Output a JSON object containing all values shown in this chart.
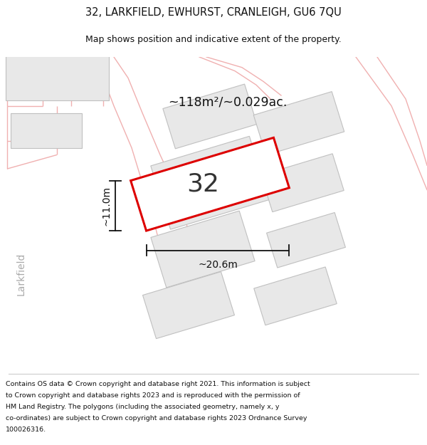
{
  "title_line1": "32, LARKFIELD, EWHURST, CRANLEIGH, GU6 7QU",
  "title_line2": "Map shows position and indicative extent of the property.",
  "copyright_text": "Contains OS data © Crown copyright and database right 2021. This information is subject to Crown copyright and database rights 2023 and is reproduced with the permission of HM Land Registry. The polygons (including the associated geometry, namely x, y co-ordinates) are subject to Crown copyright and database rights 2023 Ordnance Survey 100026316.",
  "map_bg": "#ffffff",
  "road_outline_color": "#f0b0b0",
  "road_fill_color": "#f5f5f5",
  "building_fill": "#e8e8e8",
  "building_edge": "#c0c0c0",
  "property_fill": "#e8e8e8",
  "property_outline": "#dd0000",
  "dim_color": "#111111",
  "text_color": "#111111",
  "larkfield_color": "#aaaaaa",
  "area_text": "~118m²/~0.029ac.",
  "number_text": "32",
  "dim_width": "~20.6m",
  "dim_height": "~11.0m",
  "larkfield_text": "Larkfield"
}
